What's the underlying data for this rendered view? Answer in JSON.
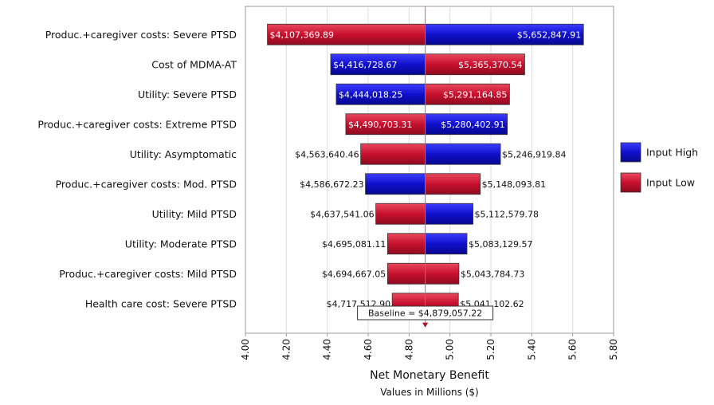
{
  "chart_data": {
    "type": "bar",
    "subtype": "tornado",
    "title": "",
    "xlabel": "Net Monetary Benefit",
    "xsublabel": "Values in Millions ($)",
    "xlim": [
      4.0,
      5.8
    ],
    "xticks": [
      "4.00",
      "4.20",
      "4.40",
      "4.60",
      "4.80",
      "5.00",
      "5.20",
      "5.40",
      "5.60",
      "5.80"
    ],
    "grid": true,
    "baseline": 4.87905722,
    "baseline_label": "Baseline = $4,879,057.22",
    "legend_position": "right",
    "series": [
      {
        "name": "Input High",
        "color": "#1010cc"
      },
      {
        "name": "Input Low",
        "color": "#c8102e"
      }
    ],
    "categories": [
      "Produc.+caregiver costs: Severe PTSD",
      "Cost of MDMA-AT",
      "Utility: Severe PTSD",
      "Produc.+caregiver costs: Extreme PTSD",
      "Utility: Asymptomatic",
      "Produc.+caregiver costs: Mod. PTSD",
      "Utility: Mild PTSD",
      "Utility: Moderate PTSD",
      "Produc.+caregiver costs: Mild PTSD",
      "Health care cost: Severe PTSD"
    ],
    "bars": [
      {
        "low": 4.10736989,
        "high": 5.65284791,
        "low_label": "$4,107,369.89",
        "high_label": "$5,652,847.91",
        "low_color": "red",
        "high_color": "blue",
        "labels_inside": true
      },
      {
        "low": 4.41672867,
        "high": 5.36537054,
        "low_label": "$4,416,728.67",
        "high_label": "$5,365,370.54",
        "low_color": "blue",
        "high_color": "red",
        "labels_inside": true
      },
      {
        "low": 4.44401825,
        "high": 5.29116485,
        "low_label": "$4,444,018.25",
        "high_label": "$5,291,164.85",
        "low_color": "blue",
        "high_color": "red",
        "labels_inside": true
      },
      {
        "low": 4.49070331,
        "high": 5.28040291,
        "low_label": "$4,490,703.31",
        "high_label": "$5,280,402.91",
        "low_color": "red",
        "high_color": "blue",
        "labels_inside": true
      },
      {
        "low": 4.56364046,
        "high": 5.24691984,
        "low_label": "$4,563,640.46",
        "high_label": "$5,246,919.84",
        "low_color": "red",
        "high_color": "blue",
        "labels_inside": false
      },
      {
        "low": 4.58667223,
        "high": 5.14809381,
        "low_label": "$4,586,672.23",
        "high_label": "$5,148,093.81",
        "low_color": "blue",
        "high_color": "red",
        "labels_inside": false
      },
      {
        "low": 4.63754106,
        "high": 5.11257978,
        "low_label": "$4,637,541.06",
        "high_label": "$5,112,579.78",
        "low_color": "red",
        "high_color": "blue",
        "labels_inside": false
      },
      {
        "low": 4.69508111,
        "high": 5.08312957,
        "low_label": "$4,695,081.11",
        "high_label": "$5,083,129.57",
        "low_color": "red",
        "high_color": "blue",
        "labels_inside": false
      },
      {
        "low": 4.69466705,
        "high": 5.04378473,
        "low_label": "$4,694,667.05",
        "high_label": "$5,043,784.73",
        "low_color": "red",
        "high_color": "red",
        "labels_inside": false
      },
      {
        "low": 4.7175129,
        "high": 5.04110262,
        "low_label": "$4,717,512.90",
        "high_label": "$5,041,102.62",
        "low_color": "red",
        "high_color": "red",
        "labels_inside": false
      }
    ]
  }
}
